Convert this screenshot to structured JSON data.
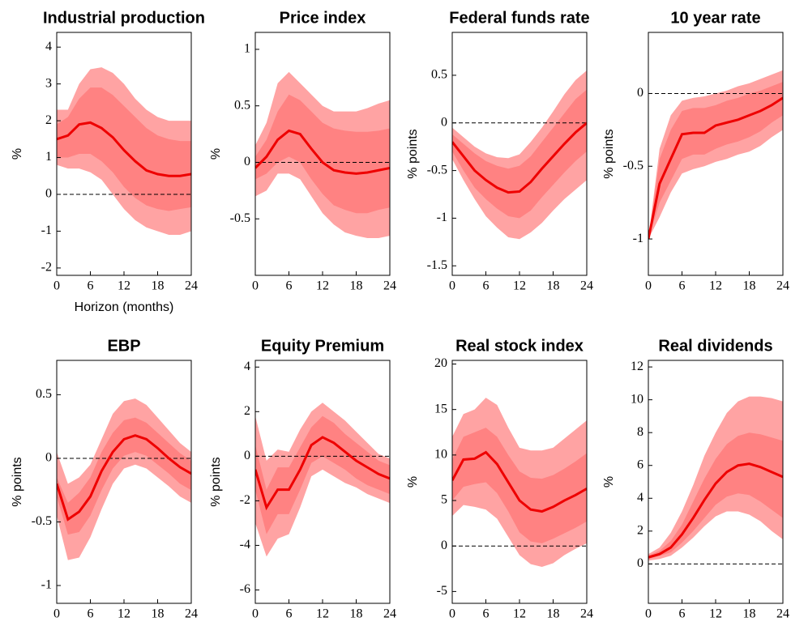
{
  "chart_data": [
    {
      "type": "line",
      "title": "Industrial production",
      "ylabel": "%",
      "xlabel": "Horizon (months)",
      "x": [
        0,
        2,
        4,
        6,
        8,
        10,
        12,
        14,
        16,
        18,
        20,
        22,
        24
      ],
      "xlim": [
        0,
        24
      ],
      "xticks": [
        0,
        6,
        12,
        18,
        24
      ],
      "ylim": [
        -2.2,
        4.4
      ],
      "yticks": [
        -2,
        -1,
        0,
        1,
        2,
        3,
        4
      ],
      "hline": 0,
      "bands": [
        {
          "color": "#ffa3a3",
          "upper": [
            2.3,
            2.3,
            3.0,
            3.4,
            3.45,
            3.3,
            3.0,
            2.6,
            2.3,
            2.1,
            2.0,
            2.0,
            2.0
          ],
          "lower": [
            0.8,
            0.7,
            0.7,
            0.6,
            0.4,
            0.0,
            -0.4,
            -0.7,
            -0.9,
            -1.0,
            -1.1,
            -1.1,
            -1.0
          ]
        },
        {
          "color": "#ff8282",
          "upper": [
            1.9,
            2.1,
            2.6,
            2.9,
            2.9,
            2.7,
            2.4,
            2.1,
            1.8,
            1.6,
            1.5,
            1.45,
            1.45
          ],
          "lower": [
            1.0,
            1.0,
            1.1,
            1.1,
            0.9,
            0.6,
            0.2,
            -0.1,
            -0.3,
            -0.4,
            -0.45,
            -0.4,
            -0.35
          ]
        }
      ],
      "series": [
        {
          "color": "#ee0000",
          "values": [
            1.5,
            1.6,
            1.9,
            1.95,
            1.8,
            1.55,
            1.2,
            0.9,
            0.65,
            0.55,
            0.5,
            0.5,
            0.55
          ]
        }
      ]
    },
    {
      "type": "line",
      "title": "Price index",
      "ylabel": "%",
      "x": [
        0,
        2,
        4,
        6,
        8,
        10,
        12,
        14,
        16,
        18,
        20,
        22,
        24
      ],
      "xlim": [
        0,
        24
      ],
      "xticks": [
        0,
        6,
        12,
        18,
        24
      ],
      "ylim": [
        -1.0,
        1.15
      ],
      "yticks": [
        -0.5,
        0,
        0.5,
        1
      ],
      "hline": 0,
      "bands": [
        {
          "color": "#ffa3a3",
          "upper": [
            0.15,
            0.35,
            0.7,
            0.8,
            0.7,
            0.6,
            0.5,
            0.45,
            0.45,
            0.45,
            0.48,
            0.52,
            0.55
          ],
          "lower": [
            -0.3,
            -0.25,
            -0.1,
            -0.1,
            -0.15,
            -0.3,
            -0.45,
            -0.55,
            -0.62,
            -0.65,
            -0.67,
            -0.67,
            -0.65
          ]
        },
        {
          "color": "#ff8282",
          "upper": [
            0.05,
            0.2,
            0.45,
            0.6,
            0.55,
            0.45,
            0.35,
            0.3,
            0.28,
            0.27,
            0.27,
            0.28,
            0.3
          ],
          "lower": [
            -0.15,
            -0.1,
            0.0,
            0.05,
            0.0,
            -0.15,
            -0.28,
            -0.38,
            -0.42,
            -0.45,
            -0.45,
            -0.42,
            -0.4
          ]
        }
      ],
      "series": [
        {
          "color": "#ee0000",
          "values": [
            -0.05,
            0.05,
            0.2,
            0.28,
            0.25,
            0.12,
            0.0,
            -0.07,
            -0.09,
            -0.1,
            -0.09,
            -0.07,
            -0.05
          ]
        }
      ]
    },
    {
      "type": "line",
      "title": "Federal funds rate",
      "ylabel": "% points",
      "x": [
        0,
        2,
        4,
        6,
        8,
        10,
        12,
        14,
        16,
        18,
        20,
        22,
        24
      ],
      "xlim": [
        0,
        24
      ],
      "xticks": [
        0,
        6,
        12,
        18,
        24
      ],
      "ylim": [
        -1.6,
        0.95
      ],
      "yticks": [
        -1.5,
        -1,
        -0.5,
        0,
        0.5
      ],
      "hline": 0,
      "bands": [
        {
          "color": "#ffa3a3",
          "upper": [
            -0.05,
            -0.15,
            -0.25,
            -0.32,
            -0.36,
            -0.37,
            -0.33,
            -0.2,
            -0.05,
            0.12,
            0.3,
            0.45,
            0.55
          ],
          "lower": [
            -0.38,
            -0.6,
            -0.8,
            -0.98,
            -1.1,
            -1.2,
            -1.22,
            -1.15,
            -1.05,
            -0.92,
            -0.8,
            -0.7,
            -0.6
          ]
        },
        {
          "color": "#ff8282",
          "upper": [
            -0.12,
            -0.22,
            -0.32,
            -0.4,
            -0.45,
            -0.48,
            -0.45,
            -0.35,
            -0.2,
            -0.05,
            0.1,
            0.25,
            0.35
          ],
          "lower": [
            -0.3,
            -0.5,
            -0.68,
            -0.8,
            -0.9,
            -0.98,
            -1.0,
            -0.92,
            -0.78,
            -0.65,
            -0.52,
            -0.4,
            -0.3
          ]
        }
      ],
      "series": [
        {
          "color": "#ee0000",
          "values": [
            -0.2,
            -0.35,
            -0.5,
            -0.6,
            -0.68,
            -0.73,
            -0.72,
            -0.62,
            -0.48,
            -0.35,
            -0.22,
            -0.1,
            0.0
          ]
        }
      ]
    },
    {
      "type": "line",
      "title": "10 year rate",
      "ylabel": "% points",
      "x": [
        0,
        2,
        4,
        6,
        8,
        10,
        12,
        14,
        16,
        18,
        20,
        22,
        24
      ],
      "xlim": [
        0,
        24
      ],
      "xticks": [
        0,
        6,
        12,
        18,
        24
      ],
      "ylim": [
        -1.25,
        0.42
      ],
      "yticks": [
        -1,
        -0.5,
        0
      ],
      "hline": 0,
      "bands": [
        {
          "color": "#ffa3a3",
          "upper": [
            -1.0,
            -0.38,
            -0.15,
            -0.05,
            -0.03,
            -0.02,
            0.0,
            0.02,
            0.05,
            0.07,
            0.1,
            0.13,
            0.16
          ],
          "lower": [
            -1.0,
            -0.85,
            -0.68,
            -0.55,
            -0.52,
            -0.5,
            -0.47,
            -0.45,
            -0.42,
            -0.4,
            -0.36,
            -0.3,
            -0.25
          ]
        },
        {
          "color": "#ff8282",
          "upper": [
            -1.0,
            -0.45,
            -0.25,
            -0.12,
            -0.1,
            -0.1,
            -0.08,
            -0.05,
            -0.03,
            0.0,
            0.02,
            0.05,
            0.08
          ],
          "lower": [
            -1.0,
            -0.75,
            -0.6,
            -0.45,
            -0.42,
            -0.42,
            -0.38,
            -0.35,
            -0.33,
            -0.3,
            -0.26,
            -0.2,
            -0.15
          ]
        }
      ],
      "series": [
        {
          "color": "#ee0000",
          "values": [
            -1.0,
            -0.62,
            -0.45,
            -0.28,
            -0.27,
            -0.27,
            -0.22,
            -0.2,
            -0.18,
            -0.15,
            -0.12,
            -0.08,
            -0.03
          ]
        }
      ]
    },
    {
      "type": "line",
      "title": "EBP",
      "ylabel": "% points",
      "x": [
        0,
        2,
        4,
        6,
        8,
        10,
        12,
        14,
        16,
        18,
        20,
        22,
        24
      ],
      "xlim": [
        0,
        24
      ],
      "xticks": [
        0,
        6,
        12,
        18,
        24
      ],
      "ylim": [
        -1.14,
        0.77
      ],
      "yticks": [
        -1,
        -0.5,
        0,
        0.5
      ],
      "hline": 0,
      "bands": [
        {
          "color": "#ffa3a3",
          "upper": [
            0.05,
            -0.2,
            -0.15,
            -0.05,
            0.15,
            0.35,
            0.45,
            0.47,
            0.42,
            0.32,
            0.22,
            0.12,
            0.05
          ],
          "lower": [
            -0.45,
            -0.8,
            -0.78,
            -0.62,
            -0.4,
            -0.2,
            -0.08,
            -0.05,
            -0.08,
            -0.15,
            -0.22,
            -0.3,
            -0.35
          ]
        },
        {
          "color": "#ff8282",
          "upper": [
            -0.15,
            -0.35,
            -0.27,
            -0.15,
            0.05,
            0.2,
            0.3,
            0.32,
            0.28,
            0.2,
            0.12,
            0.04,
            -0.02
          ],
          "lower": [
            -0.3,
            -0.6,
            -0.58,
            -0.45,
            -0.25,
            -0.08,
            0.02,
            0.05,
            0.02,
            -0.05,
            -0.12,
            -0.2,
            -0.25
          ]
        }
      ],
      "series": [
        {
          "color": "#ee0000",
          "values": [
            -0.2,
            -0.48,
            -0.42,
            -0.3,
            -0.1,
            0.05,
            0.15,
            0.18,
            0.15,
            0.08,
            0.0,
            -0.07,
            -0.12
          ]
        }
      ]
    },
    {
      "type": "line",
      "title": "Equity Premium",
      "ylabel": "% points",
      "x": [
        0,
        2,
        4,
        6,
        8,
        10,
        12,
        14,
        16,
        18,
        20,
        22,
        24
      ],
      "xlim": [
        0,
        24
      ],
      "xticks": [
        0,
        6,
        12,
        18,
        24
      ],
      "ylim": [
        -6.6,
        4.3
      ],
      "yticks": [
        -6,
        -4,
        -2,
        0,
        2,
        4
      ],
      "hline": 0,
      "bands": [
        {
          "color": "#ffa3a3",
          "upper": [
            1.8,
            -0.2,
            0.3,
            0.2,
            1.2,
            2.0,
            2.4,
            2.0,
            1.6,
            1.1,
            0.6,
            0.1,
            -0.1
          ],
          "lower": [
            -3.0,
            -4.5,
            -3.7,
            -3.5,
            -2.3,
            -0.9,
            -0.6,
            -0.9,
            -1.2,
            -1.4,
            -1.7,
            -1.9,
            -2.1
          ]
        },
        {
          "color": "#ff8282",
          "upper": [
            0.5,
            -1.5,
            -0.5,
            -0.5,
            0.4,
            1.3,
            1.8,
            1.5,
            1.0,
            0.6,
            0.2,
            -0.2,
            -0.4
          ],
          "lower": [
            -1.5,
            -3.5,
            -2.6,
            -2.6,
            -1.5,
            -0.3,
            0.0,
            -0.3,
            -0.6,
            -1.0,
            -1.3,
            -1.5,
            -1.7
          ]
        }
      ],
      "series": [
        {
          "color": "#ee0000",
          "values": [
            -0.6,
            -2.3,
            -1.5,
            -1.5,
            -0.6,
            0.5,
            0.85,
            0.6,
            0.2,
            -0.2,
            -0.5,
            -0.8,
            -1.0
          ]
        }
      ]
    },
    {
      "type": "line",
      "title": "Real stock index",
      "ylabel": "%",
      "x": [
        0,
        2,
        4,
        6,
        8,
        10,
        12,
        14,
        16,
        18,
        20,
        22,
        24
      ],
      "xlim": [
        0,
        24
      ],
      "xticks": [
        0,
        6,
        12,
        18,
        24
      ],
      "ylim": [
        -6.3,
        20.4
      ],
      "yticks": [
        -5,
        0,
        5,
        10,
        15,
        20
      ],
      "hline": 0,
      "bands": [
        {
          "color": "#ffa3a3",
          "upper": [
            12,
            14.5,
            15,
            16.3,
            15.5,
            13,
            10.8,
            10.5,
            10.5,
            10.8,
            11.8,
            12.8,
            13.8
          ],
          "lower": [
            3.3,
            4.5,
            4.3,
            4.0,
            3.0,
            1.0,
            -1.0,
            -2.0,
            -2.3,
            -1.9,
            -1.0,
            -0.3,
            0.3
          ]
        },
        {
          "color": "#ff8282",
          "upper": [
            9.5,
            12,
            12.5,
            13,
            12,
            10,
            8.2,
            7.5,
            7.4,
            7.8,
            8.5,
            9.3,
            10.2
          ],
          "lower": [
            5.0,
            6.5,
            6.8,
            7.0,
            5.8,
            3.8,
            1.5,
            0.5,
            0.3,
            0.8,
            1.4,
            2.0,
            2.7
          ]
        }
      ],
      "series": [
        {
          "color": "#ee0000",
          "values": [
            7.2,
            9.5,
            9.6,
            10.3,
            9.0,
            7.0,
            5.0,
            4.0,
            3.8,
            4.3,
            5.0,
            5.6,
            6.3
          ]
        }
      ]
    },
    {
      "type": "line",
      "title": "Real dividends",
      "ylabel": "%",
      "x": [
        0,
        2,
        4,
        6,
        8,
        10,
        12,
        14,
        16,
        18,
        20,
        22,
        24
      ],
      "xlim": [
        0,
        24
      ],
      "xticks": [
        0,
        6,
        12,
        18,
        24
      ],
      "ylim": [
        -2.4,
        12.4
      ],
      "yticks": [
        0,
        2,
        4,
        6,
        8,
        10,
        12
      ],
      "hline": 0,
      "bands": [
        {
          "color": "#ffa3a3",
          "upper": [
            0.6,
            1.0,
            1.9,
            3.2,
            4.8,
            6.6,
            8.0,
            9.2,
            9.9,
            10.2,
            10.2,
            10.1,
            9.9
          ],
          "lower": [
            0.2,
            0.3,
            0.5,
            1.0,
            1.6,
            2.3,
            2.9,
            3.2,
            3.2,
            3.0,
            2.6,
            2.0,
            1.5
          ]
        },
        {
          "color": "#ff8282",
          "upper": [
            0.5,
            0.8,
            1.4,
            2.4,
            3.8,
            5.2,
            6.4,
            7.3,
            7.8,
            8.0,
            7.9,
            7.7,
            7.5
          ],
          "lower": [
            0.3,
            0.5,
            0.7,
            1.3,
            2.0,
            2.8,
            3.6,
            4.1,
            4.3,
            4.2,
            3.8,
            3.3,
            2.8
          ]
        }
      ],
      "series": [
        {
          "color": "#ee0000",
          "values": [
            0.4,
            0.6,
            1.0,
            1.8,
            2.8,
            3.9,
            4.9,
            5.6,
            6.0,
            6.1,
            5.9,
            5.6,
            5.3
          ]
        }
      ]
    }
  ]
}
